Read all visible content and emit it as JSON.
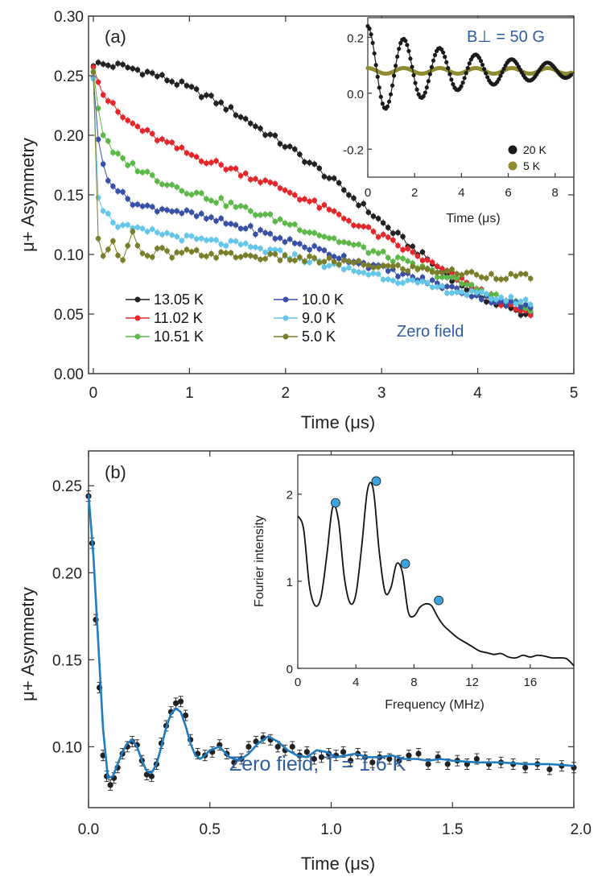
{
  "colors": {
    "13.05 K": "#222222",
    "11.02 K": "#e5262b",
    "10.51 K": "#5cb848",
    "10.0 K": "#3850a5",
    "9.0 K": "#64c6e8",
    "5.0 K": "#7a7d2a",
    "20 K": "#1a1a1a",
    "5 K": "#8e8c2f",
    "fit": "#1f7cc1",
    "peak": "#3ba3e0",
    "annotation": "#2f5e9c"
  },
  "chart_data": [
    {
      "id": "panel_a",
      "type": "scatter",
      "panel_label": "(a)",
      "title": "",
      "xlabel": "Time (μs)",
      "ylabel": "μ+ Asymmetry",
      "xlim": [
        -0.05,
        5
      ],
      "ylim": [
        0,
        0.3
      ],
      "xticks": [
        0,
        1,
        2,
        3,
        4,
        5
      ],
      "yticks": [
        0.0,
        0.05,
        0.1,
        0.15,
        0.2,
        0.25,
        0.3
      ],
      "ytick_labels": [
        "0.00",
        "0.05",
        "0.10",
        "0.15",
        "0.20",
        "0.25",
        "0.30"
      ],
      "annotation": "Zero field",
      "legend_position": "bottom-left",
      "series": [
        {
          "name": "13.05 K",
          "line": true,
          "error": 0.003,
          "x": [
            0.0,
            0.3,
            0.6,
            0.9,
            1.2,
            1.5,
            1.8,
            2.1,
            2.4,
            2.7,
            3.0,
            3.3,
            3.6,
            3.9,
            4.2,
            4.5
          ],
          "y": [
            0.26,
            0.258,
            0.252,
            0.243,
            0.232,
            0.218,
            0.202,
            0.186,
            0.168,
            0.148,
            0.127,
            0.107,
            0.088,
            0.071,
            0.058,
            0.05
          ]
        },
        {
          "name": "11.02 K",
          "line": true,
          "error": 0.003,
          "x": [
            0.0,
            0.1,
            0.3,
            0.6,
            1.0,
            1.5,
            2.0,
            2.5,
            3.0,
            3.5,
            4.0,
            4.5
          ],
          "y": [
            0.26,
            0.235,
            0.215,
            0.2,
            0.184,
            0.17,
            0.154,
            0.135,
            0.115,
            0.093,
            0.07,
            0.05
          ]
        },
        {
          "name": "10.51 K",
          "line": true,
          "error": 0.003,
          "x": [
            0.0,
            0.08,
            0.2,
            0.4,
            0.7,
            1.0,
            1.5,
            2.0,
            2.5,
            3.0,
            3.5,
            4.0,
            4.5
          ],
          "y": [
            0.255,
            0.205,
            0.185,
            0.175,
            0.162,
            0.153,
            0.14,
            0.127,
            0.113,
            0.1,
            0.086,
            0.071,
            0.055
          ]
        },
        {
          "name": "10.0 K",
          "line": true,
          "error": 0.003,
          "x": [
            0.0,
            0.06,
            0.15,
            0.3,
            0.5,
            0.8,
            1.2,
            1.6,
            2.0,
            2.5,
            3.0,
            3.5,
            4.0,
            4.5
          ],
          "y": [
            0.25,
            0.185,
            0.165,
            0.15,
            0.14,
            0.138,
            0.13,
            0.122,
            0.112,
            0.1,
            0.088,
            0.077,
            0.065,
            0.056
          ]
        },
        {
          "name": "9.0 K",
          "line": true,
          "error": 0.003,
          "x": [
            0.0,
            0.05,
            0.12,
            0.25,
            0.45,
            0.7,
            1.0,
            1.5,
            2.0,
            2.5,
            3.0,
            3.5,
            4.0,
            4.5
          ],
          "y": [
            0.25,
            0.15,
            0.135,
            0.125,
            0.12,
            0.118,
            0.113,
            0.108,
            0.1,
            0.09,
            0.082,
            0.073,
            0.066,
            0.06
          ]
        },
        {
          "name": "5.0 K",
          "line": true,
          "error": 0.003,
          "x": [
            0.0,
            0.03,
            0.07,
            0.12,
            0.2,
            0.3,
            0.4,
            0.5,
            0.6,
            0.7,
            0.8,
            0.9,
            1.0,
            1.2,
            1.5,
            2.0,
            2.5,
            3.0,
            3.5,
            4.0,
            4.5
          ],
          "y": [
            0.25,
            0.13,
            0.095,
            0.105,
            0.11,
            0.095,
            0.12,
            0.1,
            0.095,
            0.107,
            0.098,
            0.1,
            0.102,
            0.1,
            0.099,
            0.097,
            0.094,
            0.09,
            0.087,
            0.083,
            0.081
          ]
        }
      ],
      "inset": {
        "type": "scatter",
        "xlabel": "Time (μs)",
        "ylabel": "",
        "xlim": [
          0,
          8.8
        ],
        "ylim": [
          -0.3,
          0.27
        ],
        "xticks": [
          0,
          2,
          4,
          6,
          8
        ],
        "yticks": [
          -0.2,
          0.0,
          0.2
        ],
        "ytick_labels": [
          "-0.2",
          "0.0",
          "0.2"
        ],
        "annotation": "B⊥ = 50 G",
        "legend_position": "bottom-right",
        "series": [
          {
            "name": "20 K",
            "model": "A(t) = 0.08 + 0.16·e^(−0.22t)·cos(2π·0.65·t)",
            "amplitude": 0.16,
            "offset": 0.08,
            "decay_per_us": 0.22,
            "frequency_MHz": 0.65
          },
          {
            "name": "5 K",
            "model": "A(t) = 0.08 + 0.01·cos(2π·0.65·t)",
            "amplitude": 0.01,
            "offset": 0.08,
            "decay_per_us": 0.0,
            "frequency_MHz": 0.65
          }
        ]
      }
    },
    {
      "id": "panel_b",
      "type": "scatter",
      "panel_label": "(b)",
      "title": "",
      "xlabel": "Time (μs)",
      "ylabel": "μ+ Asymmetry",
      "xlim": [
        0,
        2.0
      ],
      "ylim": [
        0.065,
        0.27
      ],
      "xticks": [
        0,
        0.5,
        1.0,
        1.5,
        2.0
      ],
      "xtick_labels": [
        "0.0",
        "0.5",
        "1.0",
        "1.5",
        "2.0"
      ],
      "yticks": [
        0.1,
        0.15,
        0.2,
        0.25
      ],
      "ytick_labels": [
        "0.10",
        "0.15",
        "0.20",
        "0.25"
      ],
      "annotation": "Zero field, T = 1.6 K",
      "series": [
        {
          "name": "data 1.6 K",
          "error": 0.003,
          "x": [
            0.0,
            0.015,
            0.03,
            0.045,
            0.06,
            0.075,
            0.09,
            0.105,
            0.12,
            0.14,
            0.16,
            0.18,
            0.2,
            0.22,
            0.24,
            0.26,
            0.28,
            0.3,
            0.32,
            0.34,
            0.36,
            0.38,
            0.4,
            0.42,
            0.45,
            0.48,
            0.51,
            0.54,
            0.57,
            0.6,
            0.63,
            0.66,
            0.69,
            0.72,
            0.75,
            0.78,
            0.81,
            0.84,
            0.87,
            0.9,
            0.93,
            0.96,
            0.99,
            1.02,
            1.05,
            1.08,
            1.11,
            1.14,
            1.17,
            1.2,
            1.24,
            1.28,
            1.32,
            1.36,
            1.4,
            1.44,
            1.48,
            1.52,
            1.56,
            1.6,
            1.65,
            1.7,
            1.75,
            1.8,
            1.85,
            1.9,
            1.95,
            2.0
          ],
          "y": [
            0.244,
            0.217,
            0.173,
            0.134,
            0.095,
            0.083,
            0.078,
            0.082,
            0.088,
            0.096,
            0.1,
            0.103,
            0.101,
            0.092,
            0.084,
            0.083,
            0.09,
            0.102,
            0.112,
            0.12,
            0.125,
            0.126,
            0.118,
            0.104,
            0.096,
            0.095,
            0.097,
            0.101,
            0.096,
            0.091,
            0.093,
            0.1,
            0.103,
            0.105,
            0.104,
            0.1,
            0.098,
            0.1,
            0.095,
            0.097,
            0.093,
            0.094,
            0.096,
            0.095,
            0.097,
            0.092,
            0.096,
            0.094,
            0.091,
            0.094,
            0.093,
            0.092,
            0.095,
            0.096,
            0.09,
            0.094,
            0.09,
            0.092,
            0.09,
            0.093,
            0.09,
            0.091,
            0.09,
            0.088,
            0.09,
            0.087,
            0.089,
            0.088
          ]
        },
        {
          "name": "fit",
          "line": true,
          "x": [
            0.0,
            0.02,
            0.04,
            0.06,
            0.08,
            0.1,
            0.12,
            0.14,
            0.16,
            0.18,
            0.2,
            0.22,
            0.24,
            0.26,
            0.28,
            0.3,
            0.32,
            0.34,
            0.36,
            0.38,
            0.4,
            0.42,
            0.44,
            0.46,
            0.48,
            0.5,
            0.54,
            0.58,
            0.62,
            0.66,
            0.7,
            0.74,
            0.78,
            0.82,
            0.86,
            0.9,
            0.94,
            0.98,
            1.02,
            1.06,
            1.1,
            1.15,
            1.2,
            1.25,
            1.3,
            1.35,
            1.4,
            1.45,
            1.5,
            1.6,
            1.7,
            1.8,
            1.9,
            2.0
          ],
          "y": [
            0.245,
            0.21,
            0.16,
            0.11,
            0.082,
            0.083,
            0.09,
            0.097,
            0.102,
            0.104,
            0.1,
            0.092,
            0.086,
            0.085,
            0.09,
            0.1,
            0.111,
            0.119,
            0.122,
            0.12,
            0.112,
            0.102,
            0.095,
            0.093,
            0.095,
            0.098,
            0.1,
            0.094,
            0.092,
            0.096,
            0.102,
            0.106,
            0.103,
            0.098,
            0.095,
            0.094,
            0.098,
            0.097,
            0.094,
            0.095,
            0.096,
            0.094,
            0.094,
            0.095,
            0.093,
            0.093,
            0.092,
            0.093,
            0.092,
            0.091,
            0.091,
            0.09,
            0.09,
            0.089
          ]
        }
      ],
      "inset": {
        "type": "line",
        "xlabel": "Frequency (MHz)",
        "ylabel": "Fourier intensity",
        "xlim": [
          0,
          19
        ],
        "ylim": [
          0,
          2.45
        ],
        "xticks": [
          0,
          4,
          8,
          12,
          16
        ],
        "yticks": [
          0,
          1,
          2
        ],
        "series": [
          {
            "name": "Fourier spectrum",
            "x": [
              0.0,
              0.4,
              0.8,
              1.2,
              1.6,
              2.0,
              2.4,
              2.8,
              3.2,
              3.6,
              4.0,
              4.4,
              4.8,
              5.2,
              5.6,
              6.0,
              6.4,
              6.8,
              7.2,
              7.6,
              8.0,
              8.4,
              8.8,
              9.2,
              9.6,
              10.0,
              10.5,
              11.0,
              11.5,
              12.0,
              12.5,
              13.0,
              13.5,
              14.0,
              14.5,
              15.0,
              15.5,
              16.0,
              16.5,
              17.0,
              17.5,
              18.0,
              18.5,
              19.0
            ],
            "y": [
              1.75,
              1.6,
              0.95,
              0.72,
              0.82,
              1.3,
              1.85,
              1.7,
              1.05,
              0.75,
              0.85,
              1.4,
              2.05,
              2.05,
              1.35,
              0.88,
              0.92,
              1.2,
              1.1,
              0.65,
              0.6,
              0.7,
              0.74,
              0.72,
              0.6,
              0.5,
              0.42,
              0.35,
              0.3,
              0.25,
              0.2,
              0.18,
              0.16,
              0.17,
              0.13,
              0.12,
              0.15,
              0.13,
              0.15,
              0.14,
              0.12,
              0.12,
              0.11,
              0.03
            ]
          },
          {
            "name": "peaks",
            "marker_only": true,
            "x": [
              2.6,
              5.4,
              7.4,
              9.7
            ],
            "y": [
              1.9,
              2.15,
              1.2,
              0.78
            ]
          }
        ]
      }
    }
  ]
}
